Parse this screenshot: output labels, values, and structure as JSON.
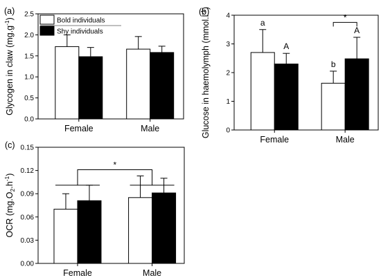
{
  "colors": {
    "bold": "#ffffff",
    "shy": "#000000",
    "stroke": "#000000"
  },
  "chart_data": [
    {
      "type": "bar",
      "panel_label": "(a)",
      "categories": [
        "Female",
        "Male"
      ],
      "ylabel": "Glycogen in claw (mg.g-1)",
      "ylabel_parts": {
        "main": "Glycogen in claw (mg.g",
        "sup": "-1",
        "tail": ")"
      },
      "ylim": [
        0.0,
        2.5
      ],
      "yticks": [
        "0.0",
        "0.5",
        "1.0",
        "1.5",
        "2.0",
        "2.5"
      ],
      "series": [
        {
          "name": "Bold individuals",
          "values": [
            1.72,
            1.66
          ],
          "errors": [
            0.28,
            0.3
          ]
        },
        {
          "name": "Shy individuals",
          "values": [
            1.48,
            1.58
          ],
          "errors": [
            0.22,
            0.15
          ]
        }
      ],
      "legend": "top-left",
      "letters": [],
      "annotations": []
    },
    {
      "type": "bar",
      "panel_label": "(b)",
      "categories": [
        "Female",
        "Male"
      ],
      "ylabel": "Glucose in haemolymph (mmol.l-1)",
      "ylabel_parts": {
        "main": "Glucose in haemolymph (mmol.l",
        "sup": "-1",
        "tail": ")"
      },
      "ylim": [
        0,
        4
      ],
      "yticks": [
        "0",
        "1",
        "2",
        "3",
        "4"
      ],
      "series": [
        {
          "name": "Bold individuals",
          "values": [
            2.7,
            1.63
          ],
          "errors": [
            0.8,
            0.42
          ]
        },
        {
          "name": "Shy individuals",
          "values": [
            2.3,
            2.48
          ],
          "errors": [
            0.37,
            0.75
          ]
        }
      ],
      "letters": [
        {
          "series": 0,
          "category": 0,
          "text": "a"
        },
        {
          "series": 1,
          "category": 0,
          "text": "A"
        },
        {
          "series": 0,
          "category": 1,
          "text": "b"
        },
        {
          "series": 1,
          "category": 1,
          "text": "A"
        }
      ],
      "annotations": [
        {
          "kind": "bracket",
          "category": 1,
          "text": "*",
          "level": 3.75
        }
      ]
    },
    {
      "type": "bar",
      "panel_label": "(c)",
      "categories": [
        "Female",
        "Male"
      ],
      "ylabel": "OCR (mg.O2.h-1)",
      "ylabel_parts": {
        "main": "OCR (mg.O",
        "sub": "2",
        "mid": ".h",
        "sup": "-1",
        "tail": ")"
      },
      "ylim": [
        0.0,
        0.15
      ],
      "yticks": [
        "0.00",
        "0.03",
        "0.06",
        "0.09",
        "0.12",
        "0.15"
      ],
      "series": [
        {
          "name": "Bold individuals",
          "values": [
            0.07,
            0.085
          ],
          "errors": [
            0.02,
            0.028
          ]
        },
        {
          "name": "Shy individuals",
          "values": [
            0.081,
            0.091
          ],
          "errors": [
            0.02,
            0.019
          ]
        }
      ],
      "letters": [],
      "annotations": [
        {
          "kind": "group-bracket",
          "text": "*",
          "level_groups": 0.101,
          "level_top": 0.121
        }
      ]
    }
  ]
}
